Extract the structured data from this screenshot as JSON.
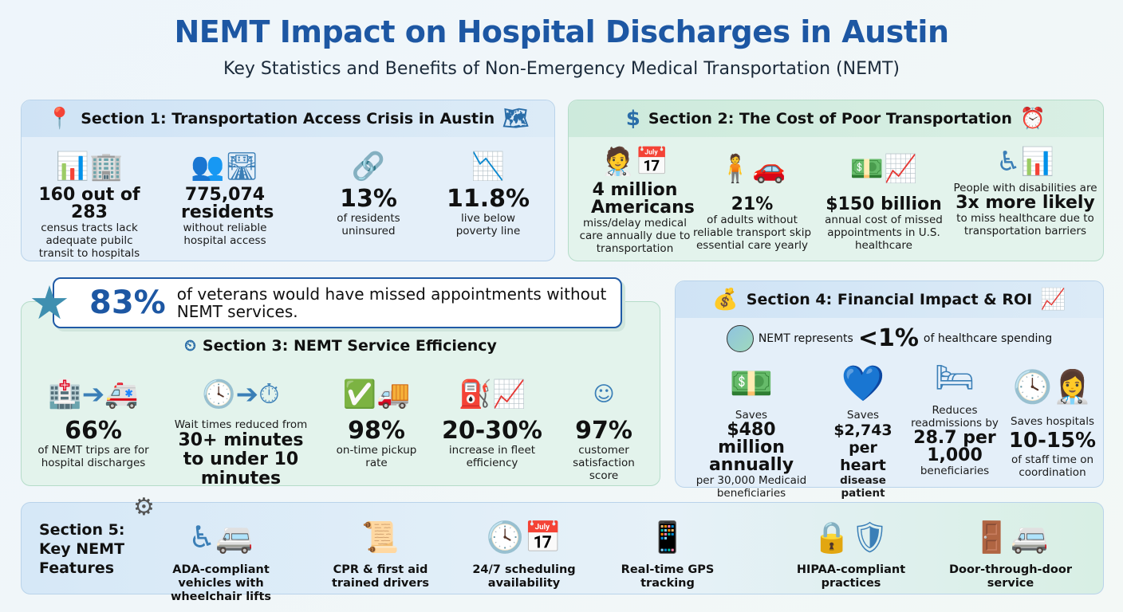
{
  "title": "NEMT Impact on Hospital Discharges in Austin",
  "subtitle": "Key Statistics and Benefits of Non-Emergency Medical Transportation (NEMT)",
  "section1": {
    "title": "Section 1: Transportation Access Crisis in Austin",
    "stats": [
      {
        "value": "160 out of 283",
        "desc": "census tracts lack adequate pubilc transit to hospitals",
        "icon": "bar-chart-buildings-icon"
      },
      {
        "value": "775,074 residents",
        "desc": "without reliable hospital access",
        "icon": "people-road-icon"
      },
      {
        "value": "13%",
        "desc": "of residents uninsured",
        "icon": "broken-chain-icon"
      },
      {
        "value": "11.8%",
        "desc": "live below poverty line",
        "icon": "declining-chart-dollar-icon"
      }
    ]
  },
  "section2": {
    "title": "Section 2: The Cost of Poor Transportation",
    "stats": [
      {
        "value": "4 million Americans",
        "desc": "miss/delay medical care annually due to transportation",
        "icon": "doctor-calendar-icon"
      },
      {
        "value": "21%",
        "desc": "of adults without reliable transport skip essential care yearly",
        "icon": "person-car-icon"
      },
      {
        "value": "$150 billion",
        "desc": "annual cost of missed appointments in U.S. healthcare",
        "icon": "money-trend-icon"
      },
      {
        "pre": "People with disabilities are",
        "value": "3x more likely",
        "desc": "to miss healthcare due to transportation barriers",
        "icon": "wheelchair-chart-icon"
      }
    ]
  },
  "veterans": {
    "value": "83%",
    "text": "of veterans would have missed appointments without NEMT services."
  },
  "section3": {
    "title": "Section 3: NEMT Service Efficiency",
    "stats": [
      {
        "value": "66%",
        "desc": "of NEMT trips are for hospital discharges",
        "icon": "hospital-ambulance-icon"
      },
      {
        "pre": "Wait times reduced from",
        "value": "30+ minutes to under 10 minutes",
        "icon": "clock-stopwatch-icon"
      },
      {
        "value": "98%",
        "desc": "on-time pickup rate",
        "icon": "check-truck-icon"
      },
      {
        "value": "20-30%",
        "desc": "increase in fleet efficiency",
        "icon": "fuel-chart-icon"
      },
      {
        "value": "97%",
        "desc": "customer satisfaction score",
        "icon": "smiley-stars-icon"
      }
    ]
  },
  "section4": {
    "title": "Section 4: Financial Impact & ROI",
    "spending": {
      "pre": "NEMT represents",
      "value": "<1%",
      "post": "of healthcare spending"
    },
    "stats": [
      {
        "pre": "Saves",
        "value": "$480 million annually",
        "desc": "per 30,000 Medicaid beneficiaries",
        "icon": "cash-icon"
      },
      {
        "pre": "Saves",
        "value": "$2,743 per heart",
        "desc": "disease patient",
        "icon": "heart-dollar-icon"
      },
      {
        "pre": "Reduces readmissions by",
        "value": "28.7 per 1,000",
        "desc": "beneficiaries",
        "icon": "hospital-bed-icon"
      },
      {
        "pre": "Saves hospitals",
        "value": "10-15%",
        "desc": "of staff time on coordination",
        "icon": "clock-nurse-icon"
      }
    ]
  },
  "section5": {
    "title": "Section 5: Key NEMT Features",
    "features": [
      {
        "label": "ADA-compliant vehicles with wheelchair lifts",
        "icon": "wheelchair-van-icon"
      },
      {
        "label": "CPR & first aid trained drivers",
        "icon": "certificate-icon"
      },
      {
        "label": "24/7 scheduling availability",
        "icon": "clock-calendar-icon"
      },
      {
        "label": "Real-time GPS tracking",
        "icon": "phone-gps-icon"
      },
      {
        "label": "HIPAA-compliant practices",
        "icon": "lock-shield-icon"
      },
      {
        "label": "Door-through-door service",
        "icon": "door-van-icon"
      }
    ]
  }
}
